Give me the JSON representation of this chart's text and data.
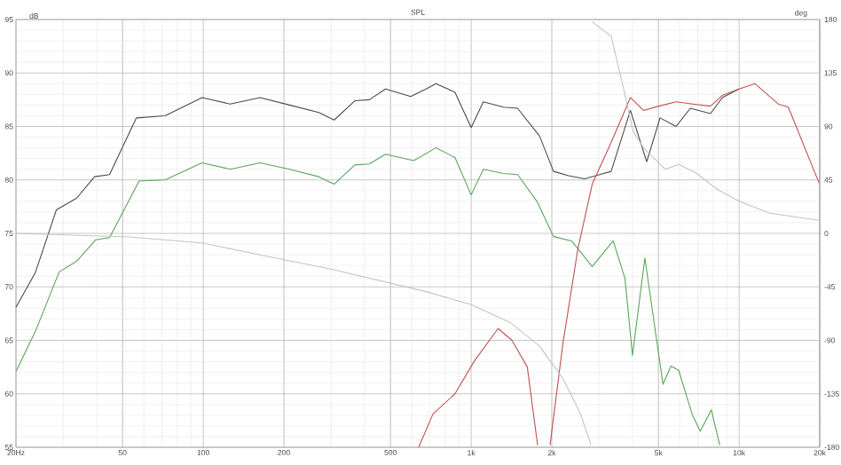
{
  "chart_data": {
    "type": "line",
    "title": "SPL",
    "ylabel": "dB",
    "y2label": "deg",
    "log": "x",
    "grid": true,
    "xlim": [
      20,
      20000
    ],
    "xticks": [
      {
        "value": 20,
        "label": "20Hz"
      },
      50,
      100,
      200,
      500,
      {
        "value": 1000,
        "label": "1k"
      },
      {
        "value": 2000,
        "label": "2k"
      },
      {
        "value": 5000,
        "label": "5k"
      },
      {
        "value": 10000,
        "label": "10k"
      },
      {
        "value": 20000,
        "label": "20k"
      }
    ],
    "ylim": [
      55,
      95
    ],
    "yticks": [
      55,
      60,
      65,
      70,
      75,
      80,
      85,
      90,
      95
    ],
    "y2lim": [
      -180,
      180
    ],
    "y2ticks": [
      -180,
      -135,
      -90,
      -45,
      0,
      45,
      90,
      135,
      180
    ],
    "series": [
      {
        "color": "#c4c4c4",
        "axis": "y2",
        "x": [
          20,
          39,
          53,
          99,
          171,
          300,
          679,
          1000,
          1400,
          1800,
          2200,
          2560,
          2800,
          2810,
          2830,
          3330,
          3670,
          4020,
          4400,
          5300,
          5950,
          6900,
          8300,
          10000,
          13000,
          19900
        ],
        "values": [
          0,
          -2,
          -3,
          -8,
          -19,
          -30,
          -49,
          -60,
          -75,
          -95,
          -122,
          -152,
          -178,
          null,
          178,
          166,
          126,
          86,
          72,
          54,
          58,
          51,
          37,
          27,
          17,
          11
        ]
      },
      {
        "color": "#5aa55a",
        "x": [
          20,
          23.6,
          29,
          33.7,
          39.7,
          44.7,
          57.6,
          72,
          99,
          126,
          163,
          210,
          270,
          308,
          368,
          417,
          479,
          610,
          739,
          870,
          1000,
          1110,
          1320,
          1490,
          1760,
          2030,
          2370,
          2830,
          3390,
          3750,
          4000,
          4450,
          5200,
          5570,
          5950,
          6680,
          7160,
          7880,
          8470
        ],
        "values": [
          62.1,
          65.8,
          71.4,
          72.4,
          74.4,
          74.6,
          79.9,
          80.0,
          81.6,
          81.0,
          81.6,
          81.0,
          80.3,
          79.6,
          81.4,
          81.5,
          82.4,
          81.8,
          83.0,
          82.1,
          78.6,
          81.0,
          80.6,
          80.5,
          78.0,
          74.7,
          74.3,
          71.9,
          74.3,
          70.8,
          63.6,
          72.7,
          60.9,
          62.6,
          62.2,
          58.1,
          56.5,
          58.5,
          55.2
        ]
      },
      {
        "color": "#4a4a4a",
        "x": [
          20,
          23.6,
          28.3,
          33.7,
          39.3,
          44.7,
          56.3,
          72,
          99,
          126,
          163,
          210,
          270,
          308,
          368,
          417,
          479,
          595,
          679,
          739,
          870,
          1000,
          1110,
          1320,
          1490,
          1800,
          2030,
          2310,
          2650,
          3020,
          3330,
          3930,
          4520,
          5070,
          5820,
          6580,
          7820,
          8660,
          10000
        ],
        "values": [
          68.1,
          71.3,
          77.2,
          78.3,
          80.3,
          80.5,
          85.8,
          86.0,
          87.7,
          87.1,
          87.7,
          87.0,
          86.3,
          85.6,
          87.4,
          87.5,
          88.5,
          87.8,
          88.5,
          89.0,
          88.2,
          84.9,
          87.3,
          86.8,
          86.7,
          84.1,
          80.8,
          80.4,
          80.1,
          80.5,
          80.8,
          86.5,
          81.7,
          85.8,
          85.0,
          86.7,
          86.2,
          87.7,
          88.5
        ]
      },
      {
        "color": "#c05050",
        "x": [
          637,
          720,
          870,
          1030,
          1260,
          1420,
          1620,
          1770,
          1870,
          1970,
          2200,
          2500,
          2830,
          3330,
          3930,
          4400,
          5000,
          5830,
          6720,
          7820,
          8660,
          10000,
          11470,
          14000,
          15270,
          19900
        ],
        "values": [
          55.0,
          58.1,
          60.0,
          63.1,
          66.1,
          65.0,
          62.5,
          55.2,
          null,
          55.2,
          64.7,
          73.5,
          79.6,
          83.5,
          87.7,
          86.5,
          86.9,
          87.3,
          87.1,
          86.9,
          87.9,
          88.5,
          89.0,
          87.1,
          86.8,
          79.7
        ]
      }
    ]
  }
}
